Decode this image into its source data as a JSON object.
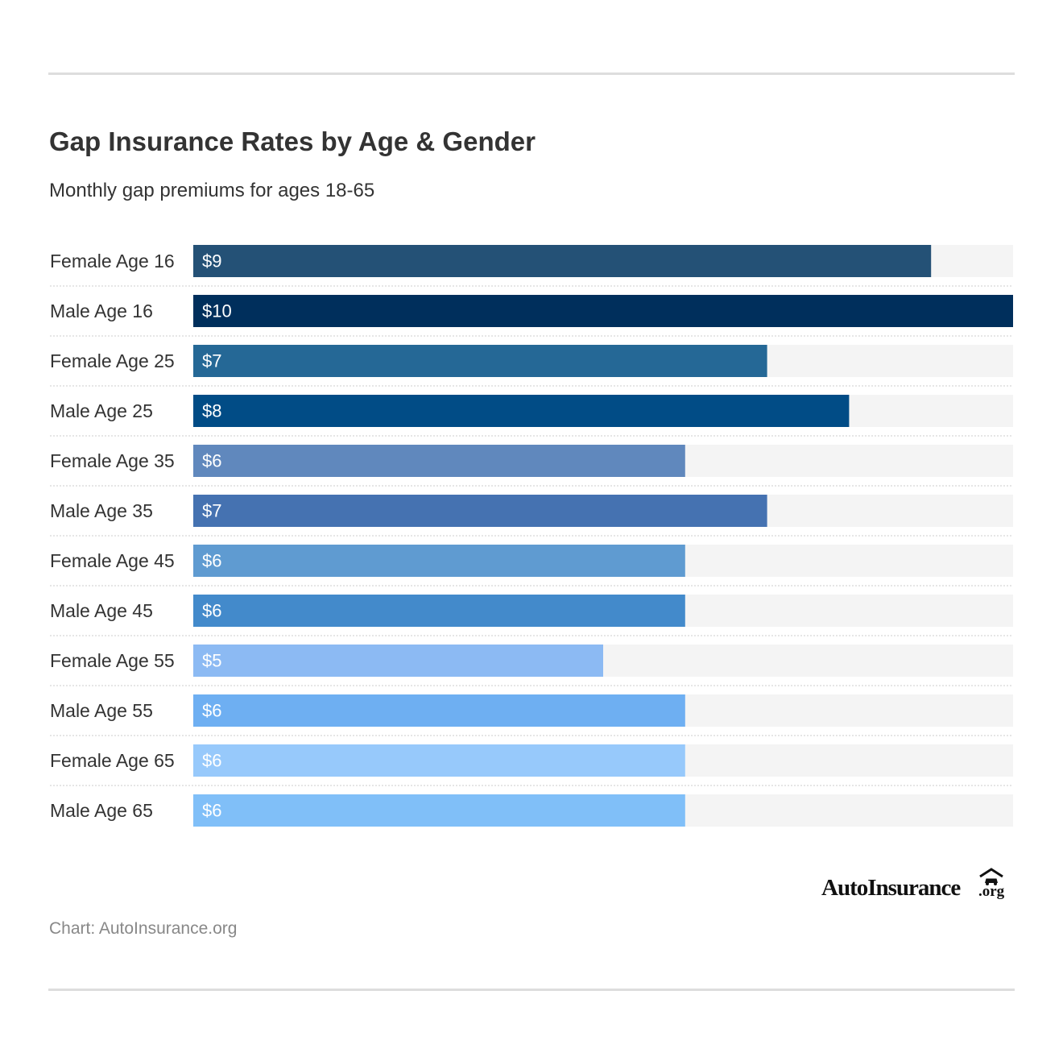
{
  "header": {
    "title": "Gap Insurance Rates by Age & Gender",
    "subtitle": "Monthly gap premiums for ages 18-65"
  },
  "chart_data": {
    "type": "bar",
    "orientation": "horizontal",
    "title": "Gap Insurance Rates by Age & Gender",
    "subtitle": "Monthly gap premiums for ages 18-65",
    "categories": [
      "Female Age 16",
      "Male Age 16",
      "Female Age 25",
      "Male Age 25",
      "Female Age 35",
      "Male Age 35",
      "Female Age 45",
      "Male Age 45",
      "Female Age 55",
      "Male Age 55",
      "Female Age 65",
      "Male Age 65"
    ],
    "values": [
      9,
      10,
      7,
      8,
      6,
      7,
      6,
      6,
      5,
      6,
      6,
      6
    ],
    "value_labels": [
      "$9",
      "$10",
      "$7",
      "$8",
      "$6",
      "$7",
      "$6",
      "$6",
      "$5",
      "$6",
      "$6",
      "$6"
    ],
    "bar_colors": [
      "#245176",
      "#002f5c",
      "#256896",
      "#014c86",
      "#6088bd",
      "#4572b1",
      "#5f9bd1",
      "#438acb",
      "#8cbaf3",
      "#6eaff2",
      "#97c9fb",
      "#80bff8"
    ],
    "track_color": "#f4f4f4",
    "xlim": [
      0,
      10
    ],
    "grid": false,
    "legend": "none"
  },
  "footer": {
    "logo_text": "AutoInsurance",
    "logo_suffix": ".org",
    "source": "Chart: AutoInsurance.org"
  }
}
